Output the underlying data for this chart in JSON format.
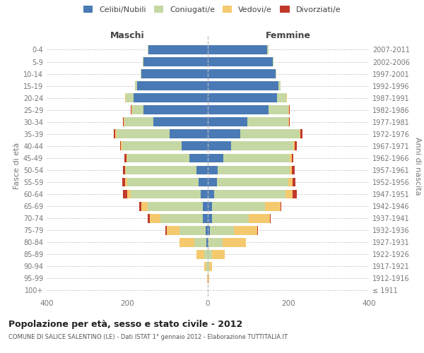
{
  "age_groups": [
    "100+",
    "95-99",
    "90-94",
    "85-89",
    "80-84",
    "75-79",
    "70-74",
    "65-69",
    "60-64",
    "55-59",
    "50-54",
    "45-49",
    "40-44",
    "35-39",
    "30-34",
    "25-29",
    "20-24",
    "15-19",
    "10-14",
    "5-9",
    "0-4"
  ],
  "birth_years": [
    "≤ 1911",
    "1912-1916",
    "1917-1921",
    "1922-1926",
    "1927-1931",
    "1932-1936",
    "1937-1941",
    "1942-1946",
    "1947-1951",
    "1952-1956",
    "1957-1961",
    "1962-1966",
    "1967-1971",
    "1972-1976",
    "1977-1981",
    "1982-1986",
    "1987-1991",
    "1992-1996",
    "1997-2001",
    "2002-2006",
    "2007-2011"
  ],
  "males": {
    "celibi": [
      0,
      0,
      0,
      0,
      3,
      5,
      12,
      12,
      17,
      22,
      28,
      45,
      65,
      95,
      135,
      160,
      185,
      175,
      165,
      160,
      148
    ],
    "coniugati": [
      0,
      0,
      3,
      8,
      30,
      65,
      105,
      138,
      175,
      178,
      175,
      155,
      148,
      132,
      72,
      28,
      18,
      5,
      2,
      2,
      2
    ],
    "vedovi": [
      0,
      2,
      5,
      20,
      38,
      32,
      27,
      15,
      8,
      5,
      3,
      2,
      2,
      2,
      2,
      2,
      2,
      0,
      0,
      0,
      0
    ],
    "divorziati": [
      0,
      0,
      0,
      0,
      0,
      3,
      5,
      5,
      10,
      7,
      5,
      5,
      3,
      5,
      2,
      2,
      0,
      0,
      0,
      0,
      0
    ]
  },
  "females": {
    "nubili": [
      0,
      0,
      0,
      0,
      2,
      5,
      10,
      10,
      15,
      22,
      25,
      38,
      58,
      80,
      98,
      150,
      172,
      175,
      168,
      162,
      148
    ],
    "coniugate": [
      0,
      0,
      3,
      10,
      35,
      60,
      92,
      132,
      178,
      178,
      178,
      165,
      155,
      148,
      102,
      50,
      22,
      5,
      2,
      2,
      2
    ],
    "vedove": [
      0,
      3,
      8,
      32,
      58,
      58,
      52,
      38,
      18,
      10,
      5,
      5,
      3,
      2,
      2,
      2,
      2,
      0,
      0,
      0,
      0
    ],
    "divorziate": [
      0,
      0,
      0,
      0,
      0,
      2,
      3,
      3,
      10,
      8,
      8,
      5,
      5,
      5,
      2,
      2,
      0,
      0,
      0,
      0,
      0
    ]
  },
  "colors": {
    "celibi_nubili": "#4a7ab5",
    "coniugati": "#c5d8a4",
    "vedovi": "#f5c96e",
    "divorziati": "#c0392b"
  },
  "title": "Popolazione per età, sesso e stato civile - 2012",
  "subtitle": "COMUNE DI SALICE SALENTINO (LE) - Dati ISTAT 1° gennaio 2012 - Elaborazione TUTTITALIA.IT",
  "ylabel_left": "Fasce di età",
  "ylabel_right": "Anni di nascita",
  "xlim": 400,
  "legend_labels": [
    "Celibi/Nubili",
    "Coniugati/e",
    "Vedovi/e",
    "Divorziati/e"
  ],
  "maschi_label": "Maschi",
  "femmine_label": "Femmine",
  "bg_color": "#ffffff",
  "grid_color": "#cccccc",
  "text_color": "#444444",
  "label_color": "#777777"
}
